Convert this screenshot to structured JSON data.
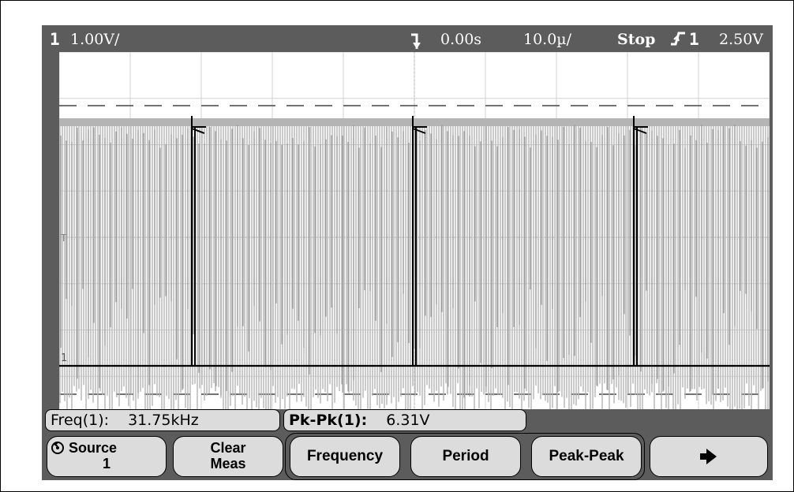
{
  "top_bar": {
    "channel_number": "1",
    "channel_scale": "1.00V/",
    "time_delay": "0.00s",
    "time_scale": "10.0µ/",
    "run_state": "Stop",
    "trigger_source": "1",
    "trigger_level": "2.50V"
  },
  "measurements": {
    "freq_label": "Freq(1):",
    "freq_value": "31.75kHz",
    "pkpk_label": "Pk-Pk(1):",
    "pkpk_value": "6.31V"
  },
  "softkeys": {
    "source_label": "Source",
    "source_value": "1",
    "clear_line1": "Clear",
    "clear_line2": "Meas",
    "frequency": "Frequency",
    "period": "Period",
    "peak_peak": "Peak-Peak"
  },
  "markers": {
    "trigger_level_marker": "T",
    "ground_marker": "1"
  },
  "colors": {
    "bezel": "#5c5c5c",
    "trace": "#000000",
    "persistence": "#b4b4b4",
    "button": "#dcdcdc"
  },
  "icons": {
    "trigger_position": "trigger-position-icon",
    "trigger_edge": "rising-edge-icon",
    "source_knob": "entry-knob-icon",
    "more": "right-arrow-icon"
  }
}
